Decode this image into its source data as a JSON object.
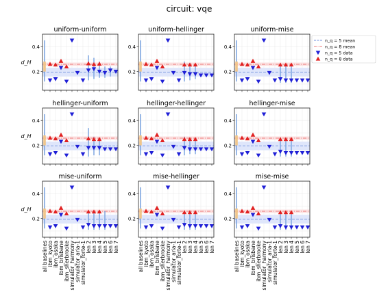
{
  "figure_title": "circuit: vqe",
  "ylabel": "d_H",
  "y_ticks": [
    0.2,
    0.4
  ],
  "x_tick_labels": [
    "all baselines",
    "ibm_kyoto",
    "ibm_osaka",
    "ibm_brisbane",
    "ibm_sherbrooke",
    "simulator_harmony",
    "simulator_aria-1",
    "simulator_forte-1",
    "len 2",
    "len 3",
    "len 4",
    "len 5",
    "len 6",
    "len 7"
  ],
  "legend": [
    {
      "label": "n_q = 5 mean",
      "color": "#6f8fdc",
      "kind": "dashed-line"
    },
    {
      "label": "n_q = 8 mean",
      "color": "#ec7474",
      "kind": "dashdot-line"
    },
    {
      "label": "n_q = 5 data",
      "color": "#1f1fd6",
      "kind": "down-triangle"
    },
    {
      "label": "n_q = 8 data",
      "color": "#e02020",
      "kind": "up-triangle"
    }
  ],
  "colors": {
    "mean5": "#6f8fdc",
    "mean8": "#ec7474",
    "band5": "#dfe6fb",
    "band8": "#fbe0e0",
    "data5": "#1f1fd6",
    "data8": "#e02020",
    "errbar": "#7ea6e0",
    "baseline_box": "#f0c58a"
  },
  "chart_data": {
    "type": "scatter",
    "ylim": [
      0.05,
      0.5
    ],
    "grid": true,
    "legend_position": "top-right",
    "means": {
      "n5": 0.195,
      "n8": 0.258
    },
    "bands": {
      "n5": [
        0.16,
        0.23
      ],
      "n8": [
        0.245,
        0.272
      ]
    },
    "categories": [
      "all baselines",
      "ibm_kyoto",
      "ibm_osaka",
      "ibm_brisbane",
      "ibm_sherbrooke",
      "simulator_harmony",
      "simulator_aria-1",
      "simulator_forte-1",
      "len 2",
      "len 3",
      "len 4",
      "len 5",
      "len 6",
      "len 7"
    ],
    "panels": [
      {
        "title": "uniform-uniform",
        "n8": {
          "ibm_kyoto": 0.26,
          "ibm_osaka": 0.255,
          "ibm_brisbane": 0.285,
          "ibm_sherbrooke": 0.24,
          "len 2": 0.265,
          "len 3": 0.258,
          "len 4": 0.262
        },
        "n5": {
          "ibm_kyoto": 0.13,
          "ibm_osaka": 0.14,
          "ibm_brisbane": 0.23,
          "ibm_sherbrooke": 0.12,
          "simulator_harmony": 0.45,
          "simulator_aria-1": 0.19,
          "simulator_forte-1": 0.13,
          "len 2": 0.21,
          "len 3": 0.22,
          "len 4": 0.2,
          "len 5": 0.19,
          "len 6": 0.21,
          "len 7": 0.2
        },
        "err": {
          "len 2": [
            0.13,
            0.33
          ],
          "len 3": [
            0.14,
            0.31
          ],
          "len 4": [
            0.15,
            0.28
          ],
          "len 5": [
            0.15,
            0.24
          ],
          "len 6": [
            0.16,
            0.24
          ]
        }
      },
      {
        "title": "uniform-hellinger",
        "n8": {
          "ibm_kyoto": 0.26,
          "ibm_osaka": 0.255,
          "ibm_brisbane": 0.285,
          "ibm_sherbrooke": 0.24,
          "len 2": 0.255,
          "len 3": 0.255,
          "len 4": 0.255
        },
        "n5": {
          "ibm_kyoto": 0.13,
          "ibm_osaka": 0.14,
          "ibm_brisbane": 0.23,
          "ibm_sherbrooke": 0.12,
          "simulator_harmony": 0.45,
          "simulator_aria-1": 0.19,
          "simulator_forte-1": 0.13,
          "len 2": 0.19,
          "len 3": 0.18,
          "len 4": 0.18,
          "len 5": 0.17,
          "len 6": 0.17,
          "len 7": 0.17
        },
        "err": {
          "len 2": [
            0.12,
            0.28
          ],
          "len 3": [
            0.13,
            0.27
          ],
          "len 4": [
            0.14,
            0.26
          ]
        }
      },
      {
        "title": "uniform-mise",
        "n8": {
          "ibm_kyoto": 0.26,
          "ibm_osaka": 0.255,
          "ibm_brisbane": 0.285,
          "ibm_sherbrooke": 0.24,
          "len 2": 0.255,
          "len 3": 0.255,
          "len 4": 0.255
        },
        "n5": {
          "ibm_kyoto": 0.13,
          "ibm_osaka": 0.14,
          "ibm_brisbane": 0.23,
          "ibm_sherbrooke": 0.12,
          "simulator_harmony": 0.45,
          "simulator_aria-1": 0.19,
          "simulator_forte-1": 0.13,
          "len 2": 0.14,
          "len 3": 0.13,
          "len 4": 0.13,
          "len 5": 0.13,
          "len 6": 0.13,
          "len 7": 0.13
        },
        "err": {
          "len 2": [
            0.11,
            0.26
          ],
          "len 3": [
            0.11,
            0.26
          ],
          "len 4": [
            0.11,
            0.26
          ]
        }
      },
      {
        "title": "hellinger-uniform",
        "n8": {
          "ibm_kyoto": 0.26,
          "ibm_osaka": 0.255,
          "ibm_brisbane": 0.285,
          "ibm_sherbrooke": 0.24,
          "len 2": 0.255,
          "len 3": 0.25,
          "len 4": 0.25
        },
        "n5": {
          "ibm_kyoto": 0.13,
          "ibm_osaka": 0.14,
          "ibm_brisbane": 0.23,
          "ibm_sherbrooke": 0.12,
          "simulator_harmony": 0.45,
          "simulator_aria-1": 0.19,
          "simulator_forte-1": 0.13,
          "len 2": 0.18,
          "len 3": 0.18,
          "len 4": 0.18,
          "len 5": 0.17,
          "len 6": 0.17,
          "len 7": 0.17
        },
        "err": {
          "len 2": [
            0.11,
            0.34
          ],
          "len 3": [
            0.12,
            0.27
          ],
          "len 4": [
            0.12,
            0.26
          ]
        }
      },
      {
        "title": "hellinger-hellinger",
        "n8": {
          "ibm_kyoto": 0.26,
          "ibm_osaka": 0.255,
          "ibm_brisbane": 0.285,
          "ibm_sherbrooke": 0.24,
          "len 2": 0.25,
          "len 3": 0.25,
          "len 4": 0.25
        },
        "n5": {
          "ibm_kyoto": 0.13,
          "ibm_osaka": 0.14,
          "ibm_brisbane": 0.23,
          "ibm_sherbrooke": 0.12,
          "simulator_harmony": 0.45,
          "simulator_aria-1": 0.19,
          "simulator_forte-1": 0.13,
          "len 2": 0.18,
          "len 3": 0.17,
          "len 4": 0.17,
          "len 5": 0.17,
          "len 6": 0.17,
          "len 7": 0.17
        },
        "err": {
          "len 2": [
            0.12,
            0.27
          ],
          "len 3": [
            0.13,
            0.26
          ],
          "len 4": [
            0.13,
            0.26
          ]
        }
      },
      {
        "title": "hellinger-mise",
        "n8": {
          "ibm_kyoto": 0.26,
          "ibm_osaka": 0.255,
          "ibm_brisbane": 0.285,
          "ibm_sherbrooke": 0.24,
          "len 2": 0.25,
          "len 3": 0.25,
          "len 4": 0.25
        },
        "n5": {
          "ibm_kyoto": 0.13,
          "ibm_osaka": 0.14,
          "ibm_brisbane": 0.23,
          "ibm_sherbrooke": 0.12,
          "simulator_harmony": 0.45,
          "simulator_aria-1": 0.19,
          "simulator_forte-1": 0.13,
          "len 2": 0.15,
          "len 3": 0.14,
          "len 4": 0.14,
          "len 5": 0.14,
          "len 6": 0.14,
          "len 7": 0.14
        },
        "err": {
          "len 2": [
            0.11,
            0.26
          ],
          "len 3": [
            0.11,
            0.26
          ],
          "len 4": [
            0.11,
            0.26
          ]
        }
      },
      {
        "title": "mise-uniform",
        "n8": {
          "ibm_kyoto": 0.26,
          "ibm_osaka": 0.255,
          "ibm_brisbane": 0.285,
          "ibm_sherbrooke": 0.24,
          "len 2": 0.255,
          "len 3": 0.255,
          "len 4": 0.255
        },
        "n5": {
          "ibm_kyoto": 0.13,
          "ibm_osaka": 0.14,
          "ibm_brisbane": 0.23,
          "ibm_sherbrooke": 0.12,
          "simulator_harmony": 0.45,
          "simulator_aria-1": 0.19,
          "simulator_forte-1": 0.13,
          "len 2": 0.15,
          "len 3": 0.14,
          "len 4": 0.14,
          "len 5": 0.14,
          "len 6": 0.14,
          "len 7": 0.14
        },
        "err": {
          "len 2": [
            0.11,
            0.26
          ],
          "len 3": [
            0.11,
            0.26
          ],
          "len 4": [
            0.11,
            0.26
          ],
          "len 5": [
            0.11,
            0.26
          ]
        }
      },
      {
        "title": "mise-hellinger",
        "n8": {
          "ibm_kyoto": 0.26,
          "ibm_osaka": 0.255,
          "ibm_brisbane": 0.285,
          "ibm_sherbrooke": 0.24,
          "len 2": 0.25,
          "len 3": 0.25,
          "len 4": 0.25
        },
        "n5": {
          "ibm_kyoto": 0.13,
          "ibm_osaka": 0.14,
          "ibm_brisbane": 0.23,
          "ibm_sherbrooke": 0.12,
          "simulator_harmony": 0.45,
          "simulator_aria-1": 0.19,
          "simulator_forte-1": 0.13,
          "len 2": 0.15,
          "len 3": 0.14,
          "len 4": 0.14,
          "len 5": 0.14,
          "len 6": 0.14,
          "len 7": 0.14
        },
        "err": {
          "len 2": [
            0.11,
            0.26
          ],
          "len 3": [
            0.11,
            0.26
          ],
          "len 4": [
            0.11,
            0.26
          ]
        }
      },
      {
        "title": "mise-mise",
        "n8": {
          "ibm_kyoto": 0.26,
          "ibm_osaka": 0.255,
          "ibm_brisbane": 0.285,
          "ibm_sherbrooke": 0.24,
          "len 2": 0.25,
          "len 3": 0.25,
          "len 4": 0.25
        },
        "n5": {
          "ibm_kyoto": 0.13,
          "ibm_osaka": 0.14,
          "ibm_brisbane": 0.23,
          "ibm_sherbrooke": 0.12,
          "simulator_harmony": 0.45,
          "simulator_aria-1": 0.19,
          "simulator_forte-1": 0.13,
          "len 2": 0.14,
          "len 3": 0.13,
          "len 4": 0.13,
          "len 5": 0.13,
          "len 6": 0.13,
          "len 7": 0.13
        },
        "err": {
          "len 2": [
            0.11,
            0.26
          ],
          "len 3": [
            0.11,
            0.26
          ],
          "len 4": [
            0.11,
            0.26
          ]
        }
      }
    ]
  }
}
